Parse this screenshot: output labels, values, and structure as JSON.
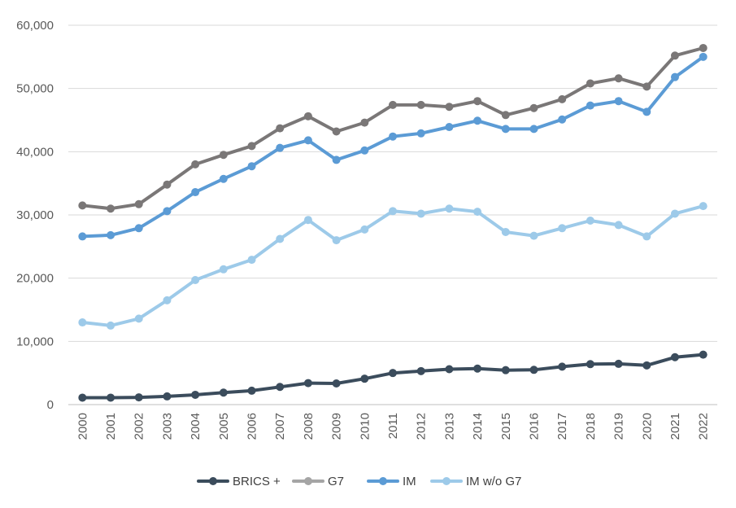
{
  "chart_data": {
    "type": "line",
    "title": "",
    "xlabel": "",
    "ylabel": "",
    "ylim": [
      0,
      60000
    ],
    "yticks": [
      0,
      10000,
      20000,
      30000,
      40000,
      50000,
      60000
    ],
    "ytick_labels": [
      "0",
      "10,000",
      "20,000",
      "30,000",
      "40,000",
      "50,000",
      "60,000"
    ],
    "categories": [
      "2000",
      "2001",
      "2002",
      "2003",
      "2004",
      "2005",
      "2006",
      "2007",
      "2008",
      "2009",
      "2010",
      "2011",
      "2012",
      "2013",
      "2014",
      "2015",
      "2016",
      "2017",
      "2018",
      "2019",
      "2020",
      "2021",
      "2022"
    ],
    "grid": true,
    "legend_position": "bottom",
    "series": [
      {
        "name": "BRICS +",
        "color": "#3b4c5c",
        "values": [
          1100,
          1100,
          1150,
          1300,
          1550,
          1900,
          2200,
          2800,
          3400,
          3350,
          4100,
          5000,
          5300,
          5600,
          5700,
          5450,
          5500,
          6000,
          6400,
          6450,
          6200,
          7500,
          7900
        ]
      },
      {
        "name": "G7",
        "color": "#7a7777",
        "values": [
          31500,
          31000,
          31700,
          34800,
          38000,
          39500,
          40900,
          43700,
          45600,
          43200,
          44600,
          47400,
          47400,
          47100,
          48000,
          45800,
          46900,
          48300,
          50800,
          51600,
          50300,
          55200,
          56400
        ]
      },
      {
        "name": "IM",
        "color": "#5b9bd5",
        "values": [
          26600,
          26800,
          27900,
          30600,
          33600,
          35700,
          37700,
          40600,
          41800,
          38700,
          40200,
          42400,
          42900,
          43900,
          44900,
          43600,
          43600,
          45100,
          47300,
          48000,
          46300,
          51800,
          55000
        ]
      },
      {
        "name": "IM w/o G7",
        "color": "#9dcae9",
        "values": [
          13000,
          12500,
          13600,
          16500,
          19700,
          21400,
          22900,
          26200,
          29200,
          26000,
          27700,
          30600,
          30200,
          31000,
          30500,
          27300,
          26700,
          27900,
          29100,
          28400,
          26600,
          30200,
          31400
        ]
      }
    ],
    "legend": [
      {
        "name": "BRICS +",
        "color": "#3b4c5c"
      },
      {
        "name": "G7",
        "color": "#a5a5a5"
      },
      {
        "name": "IM",
        "color": "#5b9bd5"
      },
      {
        "name": "IM w/o G7",
        "color": "#9dcae9"
      }
    ]
  }
}
